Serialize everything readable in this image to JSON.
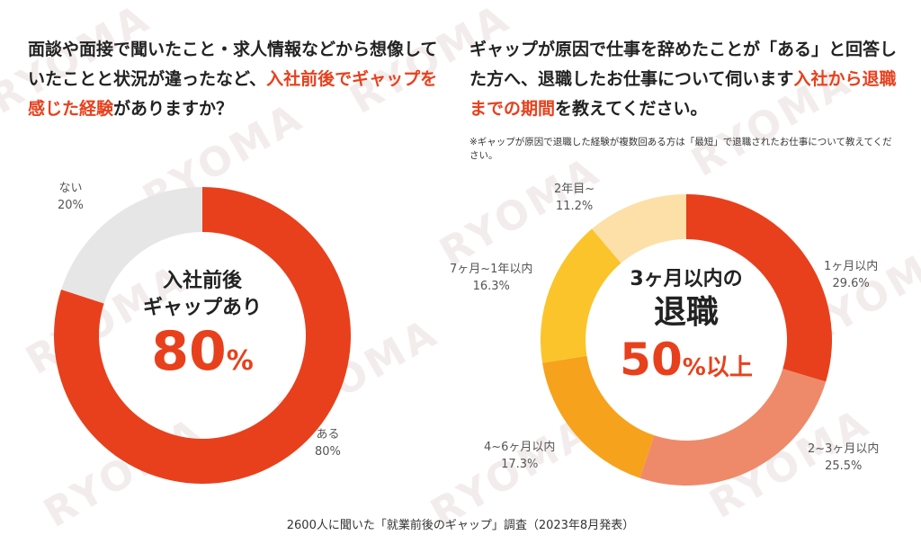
{
  "watermark": "RYOMA",
  "left_question": {
    "before": "面談や面接で聞いたこと・求人情報などから想像していたことと状況が違ったなど、",
    "highlight": "入社前後でギャップを感じた経験",
    "after": "がありますか？"
  },
  "right_question": {
    "before": "ギャップが原因で仕事を辞めたことが「ある」と回答した方へ、退職したお仕事について伺います",
    "highlight": "入社から退職までの期間",
    "after": "を教えてください。"
  },
  "right_note": "※ギャップが原因で退職した経験が複数回ある方は「最短」で退職されたお仕事について教えてください。",
  "left_center": {
    "line1": "入社前後",
    "line2": "ギャップあり",
    "value": "80",
    "unit": "%"
  },
  "right_center": {
    "line1": "3ヶ月以内の",
    "line2": "退職",
    "value": "50",
    "unit": "%",
    "suffix": "以上"
  },
  "footer": "2600人に聞いた「就業前後のギャップ」調査（2023年8月発表）",
  "chart_data": [
    {
      "type": "pie",
      "title": "入社前後でギャップを感じた経験",
      "categories": [
        "ある",
        "ない"
      ],
      "values": [
        80,
        20
      ],
      "labels": [
        "80%",
        "20%"
      ],
      "colors": [
        "#e8401c",
        "#e6e6e6"
      ]
    },
    {
      "type": "pie",
      "title": "入社から退職までの期間",
      "categories": [
        "1ヶ月以内",
        "2~3ヶ月以内",
        "4~6ヶ月以内",
        "7ヶ月~1年以内",
        "2年目~"
      ],
      "values": [
        29.6,
        25.5,
        17.3,
        16.3,
        11.2
      ],
      "labels": [
        "29.6%",
        "25.5%",
        "17.3%",
        "16.3%",
        "11.2%"
      ],
      "colors": [
        "#e8401c",
        "#ee8a6a",
        "#f7a21c",
        "#fbc42a",
        "#fce0a8"
      ]
    }
  ]
}
